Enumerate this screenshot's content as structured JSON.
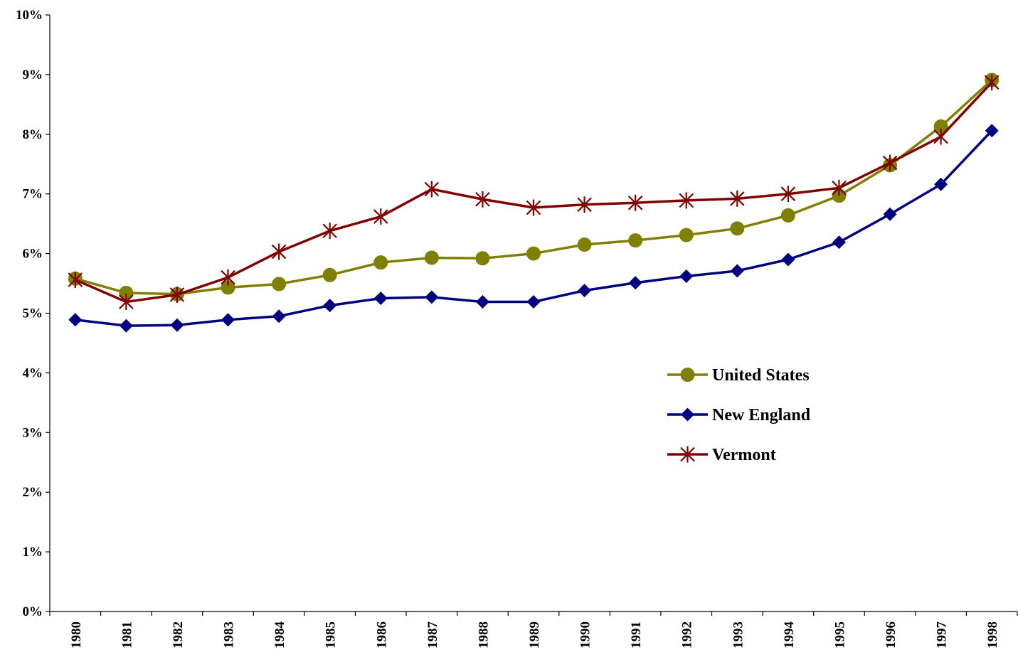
{
  "chart_data": {
    "type": "line",
    "title": "",
    "xlabel": "",
    "ylabel": "",
    "categories": [
      "1980",
      "1981",
      "1982",
      "1983",
      "1984",
      "1985",
      "1986",
      "1987",
      "1988",
      "1989",
      "1990",
      "1991",
      "1992",
      "1993",
      "1994",
      "1995",
      "1996",
      "1997",
      "1998"
    ],
    "y_ticks": [
      "0%",
      "1%",
      "2%",
      "3%",
      "4%",
      "5%",
      "6%",
      "7%",
      "8%",
      "9%",
      "10%"
    ],
    "ylim": [
      0,
      10
    ],
    "grid": false,
    "legend_position": "center-right",
    "series": [
      {
        "name": "United States",
        "color": "#808000",
        "marker": "circle",
        "values": [
          5.58,
          5.34,
          5.32,
          5.43,
          5.49,
          5.64,
          5.85,
          5.93,
          5.92,
          6.0,
          6.15,
          6.22,
          6.31,
          6.42,
          6.64,
          6.97,
          7.48,
          8.13,
          8.91
        ]
      },
      {
        "name": "New England",
        "color": "#000080",
        "marker": "diamond",
        "values": [
          4.89,
          4.79,
          4.8,
          4.89,
          4.95,
          5.13,
          5.25,
          5.27,
          5.19,
          5.19,
          5.38,
          5.51,
          5.62,
          5.71,
          5.9,
          6.19,
          6.66,
          7.16,
          8.06
        ]
      },
      {
        "name": "Vermont",
        "color": "#800000",
        "marker": "star",
        "values": [
          5.56,
          5.19,
          5.31,
          5.6,
          6.03,
          6.38,
          6.62,
          7.08,
          6.91,
          6.77,
          6.82,
          6.85,
          6.89,
          6.92,
          7.0,
          7.1,
          7.52,
          7.96,
          8.87
        ]
      }
    ]
  }
}
